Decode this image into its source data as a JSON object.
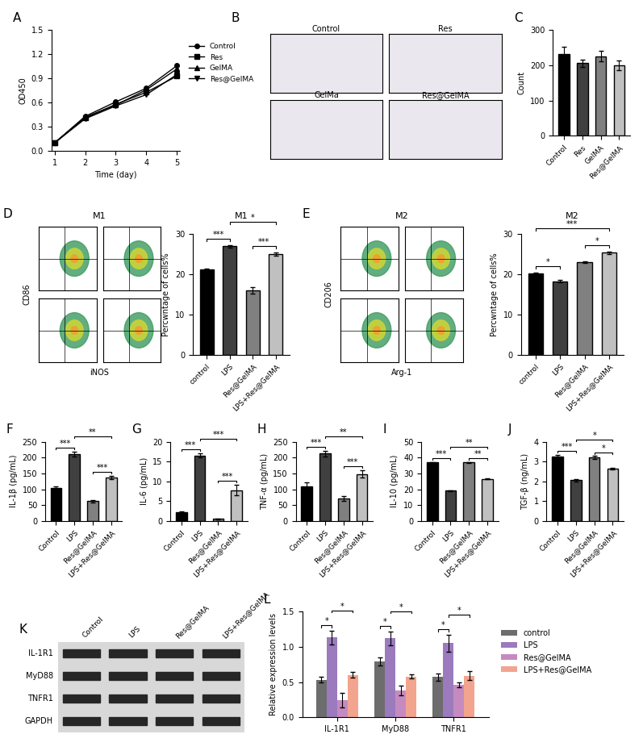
{
  "chart_data": [
    {
      "type": "line",
      "panel": "A",
      "xlabel": "Time (day)",
      "ylabel": "OD450",
      "x": [
        1,
        2,
        3,
        4,
        5
      ],
      "xlim": [
        0.9,
        5.1
      ],
      "xticks": [
        1,
        2,
        3,
        4,
        5
      ],
      "ylim": [
        0.0,
        1.5
      ],
      "yticks": [
        0.0,
        0.3,
        0.6,
        0.9,
        1.2,
        1.5
      ],
      "legend": "upper left",
      "series": [
        {
          "name": "Control",
          "color": "#000000",
          "marker": "circle",
          "values": [
            0.1,
            0.43,
            0.61,
            0.78,
            1.06
          ]
        },
        {
          "name": "Res",
          "color": "#000000",
          "marker": "square",
          "values": [
            0.1,
            0.41,
            0.58,
            0.73,
            0.93
          ]
        },
        {
          "name": "GelMA",
          "color": "#000000",
          "marker": "triangle",
          "values": [
            0.1,
            0.42,
            0.57,
            0.76,
            1.02
          ]
        },
        {
          "name": "Res@GelMA",
          "color": "#000000",
          "marker": "triangle_down",
          "values": [
            0.1,
            0.4,
            0.56,
            0.7,
            0.95
          ]
        }
      ]
    },
    {
      "type": "image",
      "panel": "B",
      "titles": [
        "Control",
        "Res",
        "GelMa",
        "Res@GelMA"
      ]
    },
    {
      "type": "bar",
      "panel": "C",
      "ylabel": "Count",
      "categories": [
        "Control",
        "Res",
        "GelMA",
        "Res@GelMA"
      ],
      "values": [
        232,
        206,
        226,
        200
      ],
      "errors": [
        20,
        10,
        15,
        14
      ],
      "colors": [
        "#000000",
        "#404040",
        "#808080",
        "#c0c0c0"
      ],
      "ylim": [
        0,
        300
      ],
      "yticks": [
        0,
        100,
        200,
        300
      ]
    },
    {
      "type": "flow",
      "panel": "D",
      "title": "M1",
      "xlabel": "iNOS",
      "ylabel": "CD86",
      "tick_labels": false
    },
    {
      "type": "bar",
      "title": "M1",
      "ylabel": "Percwntage of cells%",
      "categories": [
        "control",
        "LPS",
        "Res@GelMA",
        "LPS+Res@GelMA"
      ],
      "values": [
        21.2,
        27.0,
        16.0,
        25.1
      ],
      "errors": [
        0.3,
        0.3,
        0.8,
        0.4
      ],
      "colors": [
        "#000000",
        "#404040",
        "#808080",
        "#c0c0c0"
      ],
      "ylim": [
        0,
        30
      ],
      "yticks": [
        0,
        10,
        20,
        30
      ],
      "annotations": [
        {
          "between": [
            "control",
            "LPS"
          ],
          "text": "***"
        },
        {
          "between": [
            "Res@GelMA",
            "LPS+Res@GelMA"
          ],
          "text": "***"
        },
        {
          "between": [
            "LPS",
            "LPS+Res@GelMA"
          ],
          "text": "*"
        }
      ]
    },
    {
      "type": "flow",
      "panel": "E",
      "title": "M2",
      "xlabel": "Arg-1",
      "ylabel": "CD206",
      "tick_labels": false
    },
    {
      "type": "bar",
      "title": "M2",
      "ylabel": "Percwntage of cells%",
      "categories": [
        "control",
        "LPS",
        "Res@GelMA",
        "LPS+Res@GelMA"
      ],
      "values": [
        20.2,
        18.3,
        23.1,
        25.4
      ],
      "errors": [
        0.3,
        0.3,
        0.2,
        0.3
      ],
      "colors": [
        "#000000",
        "#404040",
        "#808080",
        "#c0c0c0"
      ],
      "ylim": [
        0,
        30
      ],
      "yticks": [
        0,
        10,
        20,
        30
      ],
      "annotations": [
        {
          "between": [
            "control",
            "LPS"
          ],
          "text": "*"
        },
        {
          "between": [
            "Res@GelMA",
            "LPS+Res@GelMA"
          ],
          "text": "*"
        },
        {
          "between": [
            "control",
            "LPS+Res@GelMA"
          ],
          "text": "***"
        }
      ]
    },
    {
      "type": "bar",
      "panel": "F",
      "ylabel": "IL-1β (pg/mL)",
      "categories": [
        "Control",
        "LPS",
        "Res@GelMA",
        "LPS+Res@GelMA"
      ],
      "values": [
        105,
        210,
        62,
        137
      ],
      "errors": [
        3,
        8,
        4,
        6
      ],
      "colors": [
        "#000000",
        "#404040",
        "#808080",
        "#c0c0c0"
      ],
      "ylim": [
        0,
        250
      ],
      "yticks": [
        0,
        50,
        100,
        150,
        200,
        250
      ],
      "annotations": [
        {
          "between": [
            "Control",
            "LPS"
          ],
          "text": "***"
        },
        {
          "between": [
            "Res@GelMA",
            "LPS+Res@GelMA"
          ],
          "text": "***"
        },
        {
          "between": [
            "LPS",
            "LPS+Res@GelMA"
          ],
          "text": "**"
        }
      ]
    },
    {
      "type": "bar",
      "panel": "G",
      "ylabel": "IL-6 (pg/mL)",
      "categories": [
        "Control",
        "LPS",
        "Res@GelMA",
        "LPS+Res@GelMA"
      ],
      "values": [
        2.2,
        16.5,
        0.5,
        7.8
      ],
      "errors": [
        0.2,
        0.5,
        0.1,
        1.3
      ],
      "colors": [
        "#000000",
        "#404040",
        "#808080",
        "#c0c0c0"
      ],
      "ylim": [
        0,
        20
      ],
      "yticks": [
        0,
        5,
        10,
        15,
        20
      ],
      "annotations": [
        {
          "between": [
            "Control",
            "LPS"
          ],
          "text": "***"
        },
        {
          "between": [
            "Res@GelMA",
            "LPS+Res@GelMA"
          ],
          "text": "***"
        },
        {
          "between": [
            "LPS",
            "LPS+Res@GelMA"
          ],
          "text": "***"
        }
      ]
    },
    {
      "type": "bar",
      "panel": "H",
      "ylabel": "TNF-α (pg/mL)",
      "categories": [
        "Control",
        "LPS",
        "Res@GelMA",
        "LPS+Res@GelMA"
      ],
      "values": [
        110,
        212,
        70,
        148
      ],
      "errors": [
        12,
        8,
        8,
        12
      ],
      "colors": [
        "#000000",
        "#404040",
        "#808080",
        "#c0c0c0"
      ],
      "ylim": [
        0,
        250
      ],
      "yticks": [
        0,
        50,
        100,
        150,
        200,
        250
      ],
      "annotations": [
        {
          "between": [
            "Control",
            "LPS"
          ],
          "text": "***"
        },
        {
          "between": [
            "Res@GelMA",
            "LPS+Res@GelMA"
          ],
          "text": "***"
        },
        {
          "between": [
            "LPS",
            "LPS+Res@GelMA"
          ],
          "text": "**"
        }
      ]
    },
    {
      "type": "bar",
      "panel": "I",
      "ylabel": "IL-10 (pg/mL)",
      "categories": [
        "Control",
        "LPS",
        "Res@GelMA",
        "LPS+Res@GelMA"
      ],
      "values": [
        37,
        19,
        37,
        26.5
      ],
      "errors": [
        0.3,
        0.3,
        0.3,
        0.3
      ],
      "colors": [
        "#000000",
        "#404040",
        "#808080",
        "#c0c0c0"
      ],
      "ylim": [
        0,
        50
      ],
      "yticks": [
        0,
        10,
        20,
        30,
        40,
        50
      ],
      "annotations": [
        {
          "between": [
            "Control",
            "LPS"
          ],
          "text": "***"
        },
        {
          "between": [
            "Res@GelMA",
            "LPS+Res@GelMA"
          ],
          "text": "**"
        },
        {
          "between": [
            "LPS",
            "LPS+Res@GelMA"
          ],
          "text": "**"
        }
      ]
    },
    {
      "type": "bar",
      "panel": "J",
      "ylabel": "TGF-β (ng/mL)",
      "categories": [
        "Control",
        "LPS",
        "Res@GelMA",
        "LPS+Res@GelMA"
      ],
      "values": [
        3.25,
        2.05,
        3.2,
        2.65
      ],
      "errors": [
        0.08,
        0.05,
        0.07,
        0.05
      ],
      "colors": [
        "#000000",
        "#404040",
        "#808080",
        "#c0c0c0"
      ],
      "ylim": [
        0,
        4
      ],
      "yticks": [
        0,
        1,
        2,
        3,
        4
      ],
      "annotations": [
        {
          "between": [
            "Control",
            "LPS"
          ],
          "text": "***"
        },
        {
          "between": [
            "Res@GelMA",
            "LPS+Res@GelMA"
          ],
          "text": "*"
        },
        {
          "between": [
            "LPS",
            "LPS+Res@GelMA"
          ],
          "text": "*"
        }
      ]
    },
    {
      "type": "blot",
      "panel": "K",
      "lanes": [
        "Control",
        "LPS",
        "Res@GelMA",
        "LPS+Res@GelMA"
      ],
      "rows": [
        "IL-1R1",
        "MyD88",
        "TNFR1",
        "GAPDH"
      ]
    },
    {
      "type": "grouped_bar",
      "panel": "L",
      "ylabel": "Relative expression levels",
      "categories": [
        "IL-1R1",
        "MyD88",
        "TNFR1"
      ],
      "legend": "upper left",
      "ylim": [
        0.0,
        1.5
      ],
      "yticks": [
        0.0,
        0.5,
        1.0,
        1.5
      ],
      "series": [
        {
          "name": "control",
          "color": "#6d6d6d",
          "values": [
            0.53,
            0.79,
            0.57
          ],
          "errors": [
            0.04,
            0.06,
            0.05
          ]
        },
        {
          "name": "LPS",
          "color": "#9b7bbd",
          "values": [
            1.13,
            1.12,
            1.05
          ],
          "errors": [
            0.1,
            0.1,
            0.12
          ]
        },
        {
          "name": "Res@GelMA",
          "color": "#c58bc0",
          "values": [
            0.24,
            0.38,
            0.46
          ],
          "errors": [
            0.1,
            0.07,
            0.03
          ]
        },
        {
          "name": "LPS+Res@GelMA",
          "color": "#f2a48e",
          "values": [
            0.6,
            0.58,
            0.59
          ],
          "errors": [
            0.04,
            0.03,
            0.06
          ]
        }
      ],
      "annotations": [
        {
          "category": "IL-1R1",
          "between": [
            "control",
            "LPS"
          ],
          "text": "*"
        },
        {
          "category": "IL-1R1",
          "between": [
            "LPS",
            "LPS+Res@GelMA"
          ],
          "text": "*"
        },
        {
          "category": "MyD88",
          "between": [
            "control",
            "LPS"
          ],
          "text": "*"
        },
        {
          "category": "MyD88",
          "between": [
            "LPS",
            "LPS+Res@GelMA"
          ],
          "text": "*"
        },
        {
          "category": "TNFR1",
          "between": [
            "control",
            "LPS"
          ],
          "text": "*"
        },
        {
          "category": "TNFR1",
          "between": [
            "LPS",
            "LPS+Res@GelMA"
          ],
          "text": "*"
        }
      ]
    }
  ]
}
